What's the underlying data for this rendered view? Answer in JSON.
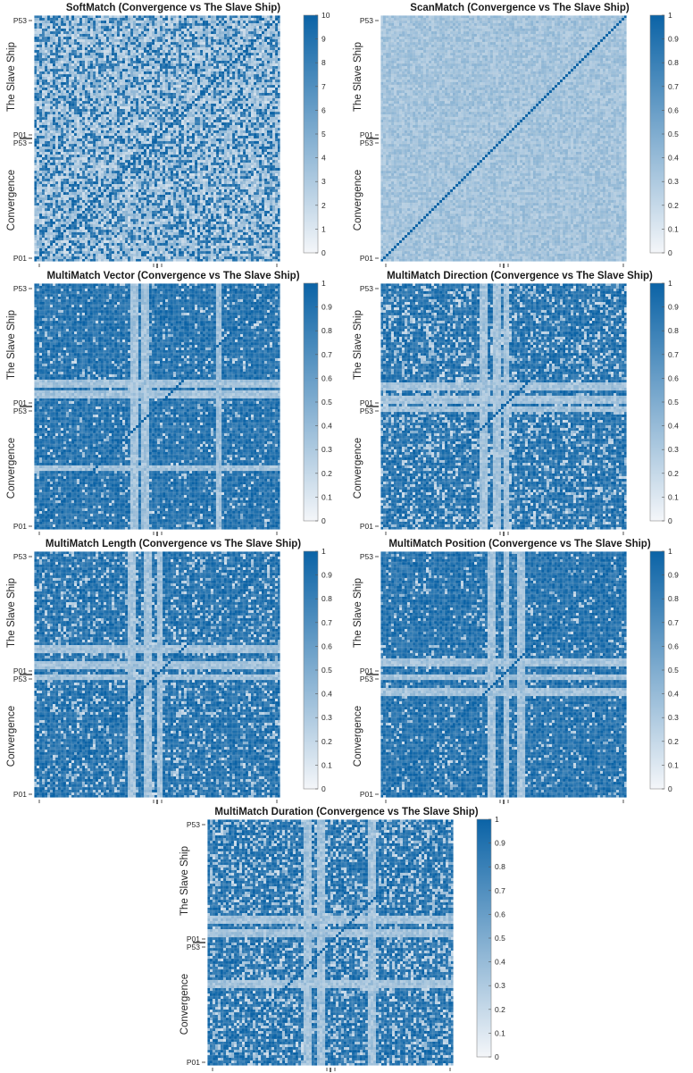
{
  "colors": {
    "high": "#0b63a6",
    "low": "#f4f6f9",
    "grid": "#d9d9d9",
    "axis": "#262626"
  },
  "chart_data": [
    {
      "type": "heatmap",
      "title": "SoftMatch (Convergence vs The Slave Ship)",
      "xlabel_groups": [
        "Convergence",
        "The Slave Ship"
      ],
      "ylabel_groups": [
        "Convergence",
        "The Slave Ship"
      ],
      "tick_labels": [
        "P01",
        "P53",
        "P01",
        "P53"
      ],
      "colorbar": {
        "min": 0,
        "max": 10,
        "ticks": [
          "0",
          "1",
          "2",
          "3",
          "4",
          "5",
          "6",
          "7",
          "8",
          "9",
          "10"
        ]
      },
      "n_participants_per_group": 53,
      "grid": false
    },
    {
      "type": "heatmap",
      "title": "ScanMatch (Convergence vs The Slave Ship)",
      "xlabel_groups": [
        "Convergence",
        "The Slave Ship"
      ],
      "ylabel_groups": [
        "Convergence",
        "The Slave Ship"
      ],
      "tick_labels": [
        "P01",
        "P53",
        "P01",
        "P53"
      ],
      "colorbar": {
        "min": 0,
        "max": 1,
        "ticks": [
          "0",
          "0.1",
          "0.2",
          "0.3",
          "0.4",
          "0.5",
          "0.6",
          "0.7",
          "0.8",
          "0.9",
          "1"
        ]
      },
      "n_participants_per_group": 53,
      "grid": false
    },
    {
      "type": "heatmap",
      "title": "MultiMatch Vector (Convergence vs The Slave Ship)",
      "xlabel_groups": [
        "Convergence",
        "The Slave Ship"
      ],
      "ylabel_groups": [
        "Convergence",
        "The Slave Ship"
      ],
      "tick_labels": [
        "P01",
        "P53",
        "P01",
        "P53"
      ],
      "colorbar": {
        "min": 0,
        "max": 1,
        "ticks": [
          "0",
          "0.1",
          "0.2",
          "0.3",
          "0.4",
          "0.5",
          "0.6",
          "0.7",
          "0.8",
          "0.9",
          "1"
        ]
      },
      "n_participants_per_group": 53,
      "grid": false
    },
    {
      "type": "heatmap",
      "title": "MultiMatch Direction (Convergence vs The Slave Ship)",
      "xlabel_groups": [
        "Convergence",
        "The Slave Ship"
      ],
      "ylabel_groups": [
        "Convergence",
        "The Slave Ship"
      ],
      "tick_labels": [
        "P01",
        "P53",
        "P01",
        "P53"
      ],
      "colorbar": {
        "min": 0,
        "max": 1,
        "ticks": [
          "0",
          "0.1",
          "0.2",
          "0.3",
          "0.4",
          "0.5",
          "0.6",
          "0.7",
          "0.8",
          "0.9",
          "1"
        ]
      },
      "n_participants_per_group": 53,
      "grid": false
    },
    {
      "type": "heatmap",
      "title": "MultiMatch Length (Convergence vs The Slave Ship)",
      "xlabel_groups": [
        "Convergence",
        "The Slave Ship"
      ],
      "ylabel_groups": [
        "Convergence",
        "The Slave Ship"
      ],
      "tick_labels": [
        "P01",
        "P53",
        "P01",
        "P53"
      ],
      "colorbar": {
        "min": 0,
        "max": 1,
        "ticks": [
          "0",
          "0.1",
          "0.2",
          "0.3",
          "0.4",
          "0.5",
          "0.6",
          "0.7",
          "0.8",
          "0.9",
          "1"
        ]
      },
      "n_participants_per_group": 53,
      "grid": false
    },
    {
      "type": "heatmap",
      "title": "MultiMatch Position (Convergence vs The Slave Ship)",
      "xlabel_groups": [
        "Convergence",
        "The Slave Ship"
      ],
      "ylabel_groups": [
        "Convergence",
        "The Slave Ship"
      ],
      "tick_labels": [
        "P01",
        "P53",
        "P01",
        "P53"
      ],
      "colorbar": {
        "min": 0,
        "max": 1,
        "ticks": [
          "0",
          "0.1",
          "0.2",
          "0.3",
          "0.4",
          "0.5",
          "0.6",
          "0.7",
          "0.8",
          "0.9",
          "1"
        ]
      },
      "n_participants_per_group": 53,
      "grid": false
    },
    {
      "type": "heatmap",
      "title": "MultiMatch Duration (Convergence vs The Slave Ship)",
      "xlabel_groups": [
        "Convergence",
        "The Slave Ship"
      ],
      "ylabel_groups": [
        "Convergence",
        "The Slave Ship"
      ],
      "tick_labels": [
        "P01",
        "P53",
        "P01",
        "P53"
      ],
      "colorbar": {
        "min": 0,
        "max": 1,
        "ticks": [
          "0",
          "0.1",
          "0.2",
          "0.3",
          "0.4",
          "0.5",
          "0.6",
          "0.7",
          "0.8",
          "0.9",
          "1"
        ]
      },
      "n_participants_per_group": 53,
      "grid": false
    }
  ]
}
